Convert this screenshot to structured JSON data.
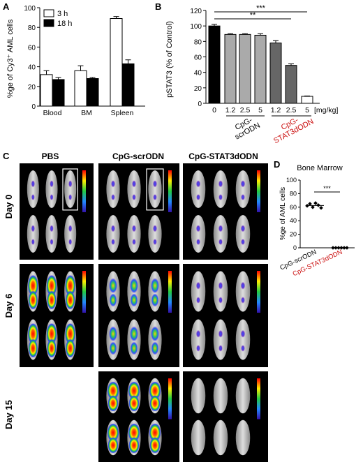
{
  "panels": {
    "A": {
      "letter": "A",
      "chart_data": {
        "type": "bar",
        "categories": [
          "Blood",
          "BM",
          "Spleen"
        ],
        "series": [
          {
            "name": "3 h",
            "values": [
              32,
              36,
              89
            ],
            "errors": [
              4,
              5,
              2
            ],
            "color": "#ffffff"
          },
          {
            "name": "18 h",
            "values": [
              27,
              28,
              43
            ],
            "errors": [
              2,
              1,
              4
            ],
            "color": "#000000"
          }
        ],
        "ylabel": "%ge of Cy3⁺ AML cells",
        "ylim": [
          0,
          100
        ],
        "yticks": [
          "0",
          "20",
          "40",
          "60",
          "80",
          "100"
        ],
        "legend": "top-left"
      }
    },
    "B": {
      "letter": "B",
      "chart_data": {
        "type": "bar",
        "categories": [
          "0",
          "1.2",
          "2.5",
          "5",
          "1.2",
          "2.5",
          "5"
        ],
        "values": [
          100,
          89,
          89,
          88,
          78,
          49,
          9
        ],
        "errors": [
          2,
          1,
          1,
          2,
          3,
          2,
          0.5
        ],
        "colors": [
          "#000000",
          "#aaaaaa",
          "#aaaaaa",
          "#aaaaaa",
          "#666666",
          "#666666",
          "#ffffff"
        ],
        "unit_label": "[mg/kg]",
        "ylabel": "pSTAT3 (% of Control)",
        "ylim": [
          0,
          120
        ],
        "yticks": [
          "0",
          "20",
          "40",
          "60",
          "80",
          "100",
          "120"
        ],
        "group_labels": [
          {
            "line1": "CpG-",
            "line2": "scrODN",
            "color": "#000000"
          },
          {
            "line1": "CpG-",
            "line2": "STAT3dODN",
            "color": "#cc1111"
          }
        ],
        "significance": [
          "***",
          "**"
        ]
      }
    },
    "C": {
      "letter": "C",
      "columns": [
        "PBS",
        "CpG-scrODN",
        "CpG-STAT3dODN"
      ],
      "rows": [
        "Day 0",
        "Day 6",
        "Day 15"
      ]
    },
    "D": {
      "letter": "D",
      "chart_data": {
        "type": "scatter",
        "title": "Bone Marrow",
        "ylabel": "%ge of AML cells",
        "ylim": [
          0,
          100
        ],
        "yticks": [
          "0",
          "20",
          "40",
          "60",
          "80",
          "100"
        ],
        "categories": [
          {
            "label": "CpG-scrODN",
            "color": "#000000"
          },
          {
            "label": "CpG-STAT3dODN",
            "color": "#cc1111"
          }
        ],
        "series": [
          {
            "values": [
              62,
              65,
              60,
              66,
              63,
              59
            ]
          },
          {
            "values": [
              0,
              0,
              0,
              0,
              0,
              0
            ]
          }
        ],
        "significance": "***"
      }
    }
  }
}
